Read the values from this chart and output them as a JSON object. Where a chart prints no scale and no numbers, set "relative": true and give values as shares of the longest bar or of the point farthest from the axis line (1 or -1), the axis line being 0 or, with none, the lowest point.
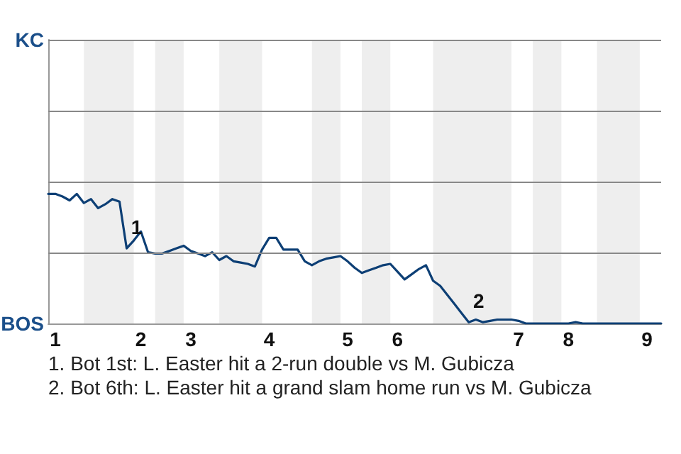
{
  "chart_data": {
    "type": "line",
    "categories": [
      null,
      "1",
      null,
      null,
      null,
      null,
      null,
      null,
      null,
      null,
      null,
      null,
      null,
      "2",
      null,
      null,
      null,
      null,
      null,
      null,
      "3",
      null,
      null,
      null,
      null,
      null,
      null,
      null,
      null,
      null,
      null,
      "4",
      null,
      null,
      null,
      null,
      null,
      null,
      null,
      null,
      null,
      null,
      "5",
      null,
      null,
      null,
      null,
      null,
      null,
      "6",
      null,
      null,
      null,
      null,
      null,
      null,
      null,
      null,
      null,
      null,
      null,
      null,
      null,
      null,
      null,
      null,
      "7",
      null,
      null,
      null,
      null,
      null,
      null,
      "8",
      null,
      null,
      null,
      null,
      null,
      null,
      null,
      null,
      null,
      null,
      "9",
      null,
      null
    ],
    "relative": true,
    "series": [
      {
        "color": "#0d3f75",
        "values": [
          1,
          1,
          0.98,
          0.95,
          1,
          0.93,
          0.96,
          0.89,
          0.92,
          0.96,
          0.94,
          0.58,
          0.64,
          0.71,
          0.55,
          0.54,
          0.54,
          0.56,
          0.58,
          0.6,
          0.56,
          0.54,
          0.52,
          0.55,
          0.49,
          0.52,
          0.48,
          0.47,
          0.46,
          0.44,
          0.57,
          0.66,
          0.66,
          0.57,
          0.57,
          0.57,
          0.48,
          0.45,
          0.48,
          0.5,
          0.51,
          0.52,
          0.48,
          0.43,
          0.39,
          0.41,
          0.43,
          0.45,
          0.46,
          0.4,
          0.34,
          0.38,
          0.42,
          0.45,
          0.33,
          0.29,
          0.22,
          0.15,
          0.08,
          0.01,
          0.03,
          0.01,
          0.02,
          0.03,
          0.03,
          0.03,
          0.02,
          0,
          0,
          0,
          0,
          0,
          0,
          0,
          0.01,
          0,
          0,
          0,
          0,
          0,
          0,
          0,
          0,
          0,
          0,
          0,
          0
        ]
      }
    ],
    "marker": "none",
    "line_style": "solid",
    "ref_lines": [
      {
        "axis": "y",
        "value": 0.5475,
        "color": "#888888"
      },
      {
        "axis": "y",
        "value": 1.095,
        "color": "#888888"
      },
      {
        "axis": "y",
        "value": 1.6425,
        "color": "#888888"
      },
      {
        "axis": "y",
        "value": 2.19,
        "color": "#888888"
      }
    ],
    "annotations": [
      "KC",
      "BOS",
      {
        "text": "1",
        "y": 0.58
      },
      {
        "text": "2",
        "y": 0.01
      },
      "1. Bot 1st: L. Easter hit a 2-run double vs M. Gubicza",
      "2. Bot 6th: L. Easter hit a grand slam home run vs M. Gubicza"
    ]
  }
}
